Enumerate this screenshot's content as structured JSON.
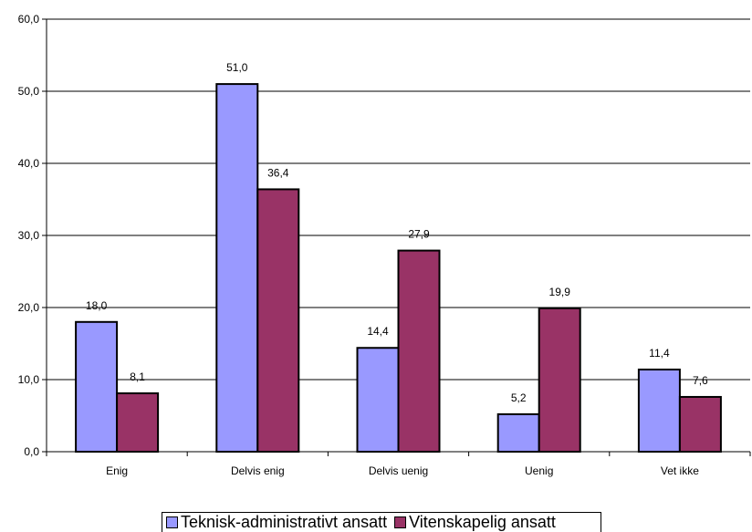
{
  "chart_data": {
    "type": "bar",
    "categories": [
      "Enig",
      "Delvis enig",
      "Delvis uenig",
      "Uenig",
      "Vet ikke"
    ],
    "series": [
      {
        "name": "Teknisk-administrativt ansatt",
        "color": "#9999ff",
        "values": [
          18.0,
          51.0,
          14.4,
          5.2,
          11.4
        ],
        "labels": [
          "18,0",
          "51,0",
          "14,4",
          "5,2",
          "11,4"
        ]
      },
      {
        "name": "Vitenskapelig ansatt",
        "color": "#993366",
        "values": [
          8.1,
          36.4,
          27.9,
          19.9,
          7.6
        ],
        "labels": [
          "8,1",
          "36,4",
          "27,9",
          "19,9",
          "7,6"
        ]
      }
    ],
    "ylim": [
      0,
      60
    ],
    "yticks": [
      0,
      10,
      20,
      30,
      40,
      50,
      60
    ],
    "ytick_labels": [
      "0,0",
      "10,0",
      "20,0",
      "30,0",
      "40,0",
      "50,0",
      "60,0"
    ],
    "grid": true,
    "legend_position": "bottom"
  }
}
